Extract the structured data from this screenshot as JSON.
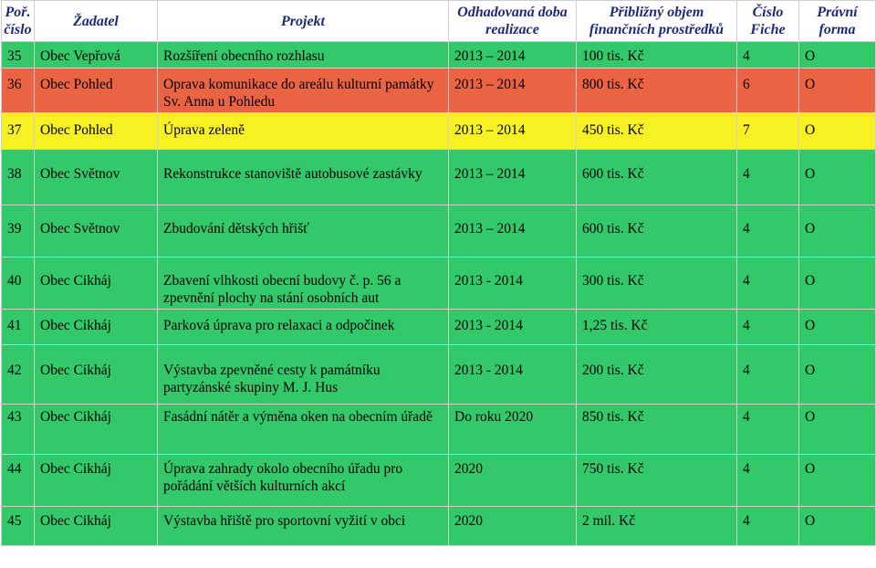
{
  "header": {
    "col_num": "Poř. číslo",
    "col_applicant": "Žadatel",
    "col_project": "Projekt",
    "col_time": "Odhadovaná doba realizace",
    "col_budget": "Přibližný objem finančních prostředků",
    "col_fiche": "Číslo Fiche",
    "col_form": "Právní forma"
  },
  "rows": [
    {
      "num": "35",
      "applicant": "Obec Vepřová",
      "project": "Rozšíření obecního rozhlasu",
      "time": "2013 – 2014",
      "budget": "100 tis. Kč",
      "fiche": "4",
      "form": "O",
      "color": "#33c96b"
    },
    {
      "num": "36",
      "applicant": "Obec Pohled",
      "project": "Oprava komunikace do areálu kulturní památky Sv. Anna u Pohledu",
      "time": "2013 – 2014",
      "budget": "800 tis. Kč",
      "fiche": "6",
      "form": "O",
      "color": "#ea6342"
    },
    {
      "num": "37",
      "applicant": "Obec Pohled",
      "project": "Úprava zeleně",
      "time": "2013 – 2014",
      "budget": "450 tis. Kč",
      "fiche": "7",
      "form": "O",
      "color": "#f7f023"
    },
    {
      "num": "38",
      "applicant": "Obec Světnov",
      "project": "Rekonstrukce stanoviště autobusové zastávky",
      "time": "2013 – 2014",
      "budget": "600 tis. Kč",
      "fiche": "4",
      "form": "O",
      "color": "#33c96b"
    },
    {
      "num": "39",
      "applicant": "Obec Světnov",
      "project": "Zbudování dětských hřišť",
      "time": "2013 – 2014",
      "budget": "600 tis. Kč",
      "fiche": "4",
      "form": "O",
      "color": "#33c96b"
    },
    {
      "num": "40",
      "applicant": "Obec Cikháj",
      "project": "Zbavení vlhkosti obecní budovy č. p. 56 a zpevnění plochy na stání osobních aut",
      "time": "2013 - 2014",
      "budget": "300 tis. Kč",
      "fiche": "4",
      "form": "O",
      "color": "#33c96b"
    },
    {
      "num": "41",
      "applicant": "Obec Cikháj",
      "project": "Parková úprava pro relaxaci a odpočinek",
      "time": "2013 - 2014",
      "budget": "1,25 tis. Kč",
      "fiche": "4",
      "form": "O",
      "color": "#33c96b"
    },
    {
      "num": "42",
      "applicant": "Obec Cikháj",
      "project": "Výstavba zpevněné cesty k památníku partyzánské skupiny M. J. Hus",
      "time": "2013 - 2014",
      "budget": "200 tis. Kč",
      "fiche": "4",
      "form": "O",
      "color": "#33c96b"
    },
    {
      "num": "43",
      "applicant": "Obec Cikháj",
      "project": "Fasádní nátěr a výměna oken na obecním úřadě",
      "time": "Do roku 2020",
      "budget": "850 tis. Kč",
      "fiche": "4",
      "form": "O",
      "color": "#33c96b"
    },
    {
      "num": "44",
      "applicant": "Obec Cikháj",
      "project": "Úprava zahrady okolo obecního úřadu pro pořádání větších kulturních akcí",
      "time": "2020",
      "budget": "750 tis. Kč",
      "fiche": "4",
      "form": "O",
      "color": "#33c96b"
    },
    {
      "num": "45",
      "applicant": "Obec Cikháj",
      "project": "Výstavba hřiště pro sportovní vyžití v obci",
      "time": "2020",
      "budget": "2 mil. Kč",
      "fiche": "4",
      "form": "O",
      "color": "#33c96b"
    }
  ]
}
